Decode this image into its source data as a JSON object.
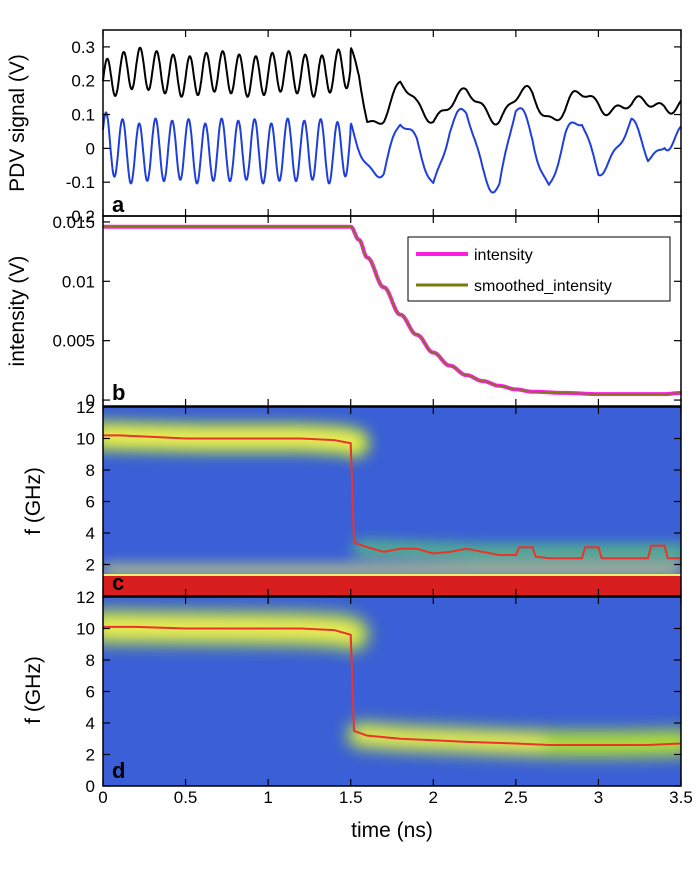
{
  "figure": {
    "xlabel": "time (ns)"
  },
  "chart_data": [
    {
      "id": "a",
      "panel_label": "a",
      "type": "line",
      "title": "",
      "xlabel": "time (ns)",
      "ylabel": "PDV signal (V)",
      "xlim": [
        0,
        3.5
      ],
      "ylim": [
        -0.2,
        0.35
      ],
      "yticks": [
        -0.2,
        -0.1,
        0,
        0.1,
        0.2,
        0.3
      ],
      "yticklabels": [
        "-0.2",
        "-0.1",
        "0",
        "0.1",
        "0.2",
        "0.3"
      ],
      "series": [
        {
          "color": "#000000",
          "x": [
            0,
            0.1,
            0.2,
            0.3,
            0.4,
            0.5,
            0.6,
            0.7,
            0.8,
            0.9,
            1.0,
            1.1,
            1.2,
            1.3,
            1.4,
            1.5,
            1.55,
            1.6,
            1.7,
            1.8,
            1.9,
            2.0,
            2.1,
            2.2,
            2.3,
            2.4,
            2.5,
            2.6,
            2.7,
            2.8,
            2.9,
            3.0,
            3.1,
            3.2,
            3.3,
            3.4,
            3.5
          ],
          "y": [
            0.2,
            0.22,
            0.24,
            0.23,
            0.22,
            0.21,
            0.22,
            0.23,
            0.22,
            0.21,
            0.22,
            0.23,
            0.22,
            0.21,
            0.23,
            0.24,
            0.2,
            0.1,
            0.12,
            0.17,
            0.12,
            0.1,
            0.13,
            0.15,
            0.13,
            0.11,
            0.12,
            0.14,
            0.13,
            0.12,
            0.13,
            0.14,
            0.13,
            0.12,
            0.13,
            0.14,
            0.13
          ]
        },
        {
          "color": "#1f3fd9",
          "x": [
            0,
            0.1,
            0.2,
            0.3,
            0.4,
            0.5,
            0.6,
            0.7,
            0.8,
            0.9,
            1.0,
            1.1,
            1.2,
            1.3,
            1.4,
            1.5,
            1.6,
            1.7,
            1.8,
            1.9,
            2.0,
            2.1,
            2.2,
            2.3,
            2.4,
            2.5,
            2.6,
            2.7,
            2.8,
            2.9,
            3.0,
            3.1,
            3.2,
            3.3,
            3.4,
            3.5
          ],
          "y": [
            0.02,
            0.0,
            -0.02,
            0.0,
            -0.01,
            0.0,
            -0.02,
            0.0,
            -0.01,
            0.0,
            -0.02,
            0.0,
            -0.01,
            0.0,
            -0.02,
            0.02,
            -0.02,
            -0.05,
            0.05,
            0.02,
            -0.08,
            0.04,
            0.07,
            -0.02,
            -0.08,
            0.05,
            0.03,
            -0.06,
            0.02,
            0.05,
            -0.05,
            0.0,
            0.05,
            -0.03,
            0.06,
            0.03
          ]
        }
      ]
    },
    {
      "id": "b",
      "panel_label": "b",
      "type": "line",
      "title": "",
      "xlabel": "time (ns)",
      "ylabel": "intensity (V)",
      "xlim": [
        0,
        3.5
      ],
      "ylim": [
        -0.0005,
        0.0155
      ],
      "yticks": [
        0,
        0.005,
        0.01,
        0.015
      ],
      "yticklabels": [
        "0",
        "0.005",
        "0.01",
        "0.015"
      ],
      "legend_position": "top-right",
      "series": [
        {
          "name": "intensity",
          "color": "#ff1ee6",
          "x": [
            0,
            0.2,
            0.4,
            0.6,
            0.8,
            1.0,
            1.2,
            1.4,
            1.5,
            1.55,
            1.6,
            1.7,
            1.8,
            1.9,
            2.0,
            2.1,
            2.2,
            2.3,
            2.4,
            2.5,
            2.6,
            2.8,
            3.0,
            3.2,
            3.4,
            3.5
          ],
          "y": [
            0.0146,
            0.0146,
            0.0146,
            0.0146,
            0.0146,
            0.0146,
            0.0146,
            0.0146,
            0.0146,
            0.0135,
            0.012,
            0.0095,
            0.0072,
            0.0055,
            0.004,
            0.0029,
            0.0021,
            0.0016,
            0.0012,
            0.0009,
            0.0007,
            0.0006,
            0.0005,
            0.0005,
            0.0005,
            0.0006
          ]
        },
        {
          "name": "smoothed_intensity",
          "color": "#7a7a10",
          "x": [
            0,
            0.2,
            0.4,
            0.6,
            0.8,
            1.0,
            1.2,
            1.4,
            1.5,
            1.55,
            1.6,
            1.7,
            1.8,
            1.9,
            2.0,
            2.1,
            2.2,
            2.3,
            2.4,
            2.5,
            2.6,
            2.8,
            3.0,
            3.2,
            3.4,
            3.5
          ],
          "y": [
            0.0146,
            0.0146,
            0.0146,
            0.0146,
            0.0146,
            0.0146,
            0.0146,
            0.0146,
            0.0146,
            0.0135,
            0.012,
            0.0095,
            0.0072,
            0.0055,
            0.004,
            0.0029,
            0.0021,
            0.0016,
            0.0012,
            0.0009,
            0.0007,
            0.0006,
            0.0005,
            0.0005,
            0.0005,
            0.0006
          ]
        }
      ]
    },
    {
      "id": "c",
      "panel_label": "c",
      "type": "heatmap",
      "title": "",
      "xlabel": "time (ns)",
      "ylabel": "f (GHz)",
      "xlim": [
        0,
        3.5
      ],
      "ylim": [
        0,
        12
      ],
      "yticks": [
        2,
        4,
        6,
        8,
        10,
        12
      ],
      "yticklabels": [
        "2",
        "4",
        "6",
        "8",
        "10",
        "12"
      ],
      "background_color": "#3a5fd6",
      "low_band": {
        "f_min": 0,
        "f_max": 1.4,
        "color": "#d81e1e"
      },
      "ridge": {
        "color": "#e8342a",
        "x": [
          0,
          0.1,
          0.3,
          0.5,
          0.8,
          1.0,
          1.2,
          1.4,
          1.5,
          1.52,
          1.6,
          1.7,
          1.8,
          1.9,
          2.0,
          2.1,
          2.2,
          2.3,
          2.4,
          2.5,
          2.52,
          2.6,
          2.62,
          2.7,
          2.9,
          2.92,
          3.0,
          3.02,
          3.1,
          3.3,
          3.32,
          3.4,
          3.42,
          3.5
        ],
        "y": [
          10.2,
          10.2,
          10.1,
          10.0,
          10.0,
          10.0,
          10.0,
          9.9,
          9.7,
          3.4,
          3.1,
          2.8,
          3.0,
          3.0,
          2.7,
          2.8,
          3.0,
          2.8,
          2.6,
          2.6,
          3.1,
          3.1,
          2.5,
          2.4,
          2.4,
          3.1,
          3.1,
          2.4,
          2.4,
          2.4,
          3.2,
          3.2,
          2.4,
          2.4
        ]
      }
    },
    {
      "id": "d",
      "panel_label": "d",
      "type": "heatmap",
      "title": "",
      "xlabel": "time (ns)",
      "ylabel": "f (GHz)",
      "xlim": [
        0,
        3.5
      ],
      "ylim": [
        0,
        12
      ],
      "yticks": [
        0,
        2,
        4,
        6,
        8,
        10,
        12
      ],
      "yticklabels": [
        "0",
        "2",
        "4",
        "6",
        "8",
        "10",
        "12"
      ],
      "xticks": [
        0,
        0.5,
        1,
        1.5,
        2,
        2.5,
        3,
        3.5
      ],
      "xticklabels": [
        "0",
        "0.5",
        "1",
        "1.5",
        "2",
        "2.5",
        "3",
        "3.5"
      ],
      "background_color": "#3a5fd6",
      "ridge": {
        "color": "#e8342a",
        "x": [
          0,
          0.2,
          0.5,
          0.8,
          1.0,
          1.2,
          1.4,
          1.5,
          1.52,
          1.6,
          1.8,
          2.0,
          2.2,
          2.5,
          2.7,
          3.0,
          3.3,
          3.5
        ],
        "y": [
          10.1,
          10.1,
          10.0,
          10.0,
          10.0,
          10.0,
          9.9,
          9.6,
          3.5,
          3.2,
          3.0,
          2.9,
          2.8,
          2.7,
          2.6,
          2.6,
          2.6,
          2.7
        ]
      }
    }
  ]
}
